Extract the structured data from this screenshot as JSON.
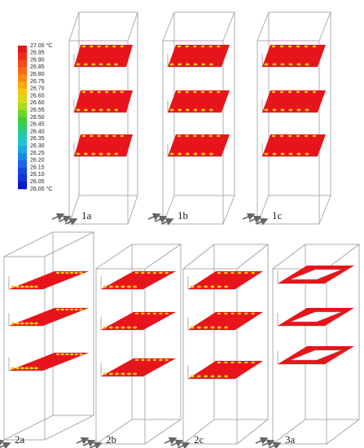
{
  "colorbar": {
    "labels": [
      "27.00 °C",
      "26.95",
      "26.90",
      "26.85",
      "26.80",
      "26.75",
      "26.70",
      "26.65",
      "26.60",
      "26.55",
      "26.50",
      "26.45",
      "26.40",
      "26.35",
      "26.30",
      "26.25",
      "26.20",
      "26.15",
      "26.10",
      "26.05",
      "26.00 °C"
    ]
  },
  "panels": [
    {
      "label": "1a"
    },
    {
      "label": "1b"
    },
    {
      "label": "1c"
    },
    {
      "label": "2a"
    },
    {
      "label": "2b"
    },
    {
      "label": "2c"
    },
    {
      "label": "3a"
    }
  ]
}
